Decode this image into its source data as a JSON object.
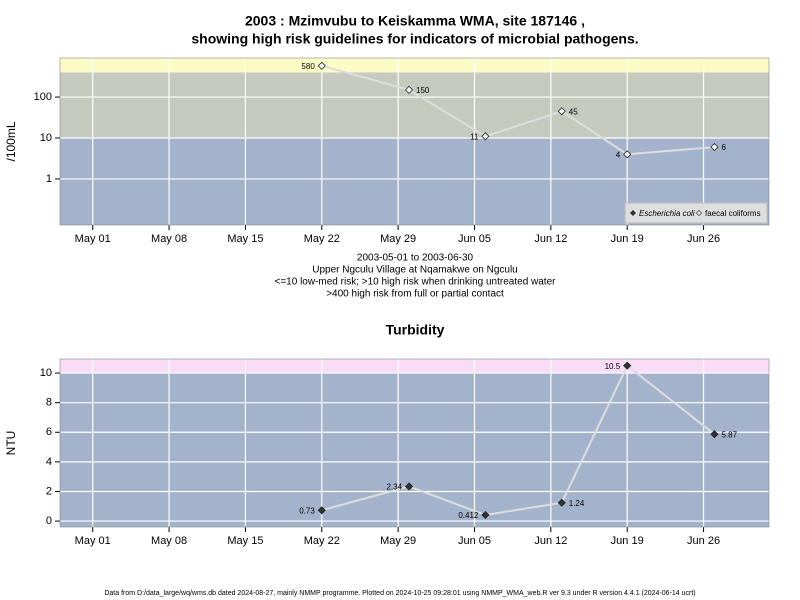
{
  "chart_data": [
    {
      "type": "line",
      "title": [
        "2003 : Mzimvubu to Keiskamma WMA, site 187146 ,",
        "showing high risk guidelines for indicators of microbial pathogens."
      ],
      "notes": [
        "2003-05-01 to 2003-06-30",
        "Upper Ngculu Village at Nqamakwe on Ngculu",
        "<=10 low-med risk; >10 high risk when drinking untreated water",
        ">400 high risk from full or partial contact"
      ],
      "ylabel": "/100mL",
      "log_scale": true,
      "grid": true,
      "legend": "lower right",
      "x": [
        "2003-05-22",
        "2003-05-30",
        "2003-06-06",
        "2003-06-13",
        "2003-06-19",
        "2003-06-27"
      ],
      "xlim": [
        "2003-04-28",
        "2003-07-02"
      ],
      "xticks": [
        {
          "value": "2003-05-01",
          "label": "May 01"
        },
        {
          "value": "2003-05-08",
          "label": "May 08"
        },
        {
          "value": "2003-05-15",
          "label": "May 15"
        },
        {
          "value": "2003-05-22",
          "label": "May 22"
        },
        {
          "value": "2003-05-29",
          "label": "May 29"
        },
        {
          "value": "2003-06-05",
          "label": "Jun 05"
        },
        {
          "value": "2003-06-12",
          "label": "Jun 12"
        },
        {
          "value": "2003-06-19",
          "label": "Jun 19"
        },
        {
          "value": "2003-06-26",
          "label": "Jun 26"
        }
      ],
      "ylim": [
        0.075,
        900
      ],
      "yticks": [
        1,
        10,
        100
      ],
      "bands": [
        {
          "range": [
            0.075,
            10
          ],
          "color": "#a3b3cc"
        },
        {
          "range": [
            10,
            400
          ],
          "color": "#c4cbbe"
        },
        {
          "range": [
            400,
            900
          ],
          "color": "#fbfbc6"
        }
      ],
      "series": [
        {
          "name": "Escherichia coli",
          "color": "#dddddd",
          "marker_fill": "#333333",
          "values": [
            null,
            null,
            null,
            null,
            null,
            null
          ]
        },
        {
          "name": "faecal coliforms",
          "color": "#dddddd",
          "marker_fill": "#ffffff",
          "values": [
            580,
            150,
            11,
            45,
            4,
            6
          ]
        }
      ]
    },
    {
      "type": "line",
      "title": [
        "Turbidity"
      ],
      "ylabel": "NTU",
      "log_scale": false,
      "grid": true,
      "x": [
        "2003-05-22",
        "2003-05-30",
        "2003-06-06",
        "2003-06-13",
        "2003-06-19",
        "2003-06-27"
      ],
      "xlim": [
        "2003-04-28",
        "2003-07-02"
      ],
      "xticks": [
        {
          "value": "2003-05-01",
          "label": "May 01"
        },
        {
          "value": "2003-05-08",
          "label": "May 08"
        },
        {
          "value": "2003-05-15",
          "label": "May 15"
        },
        {
          "value": "2003-05-22",
          "label": "May 22"
        },
        {
          "value": "2003-05-29",
          "label": "May 29"
        },
        {
          "value": "2003-06-05",
          "label": "Jun 05"
        },
        {
          "value": "2003-06-12",
          "label": "Jun 12"
        },
        {
          "value": "2003-06-19",
          "label": "Jun 19"
        },
        {
          "value": "2003-06-26",
          "label": "Jun 26"
        }
      ],
      "ylim": [
        -0.4,
        10.95
      ],
      "yticks": [
        0,
        2,
        4,
        6,
        8,
        10
      ],
      "bands": [
        {
          "range": [
            -0.4,
            10
          ],
          "color": "#a3b3cc"
        },
        {
          "range": [
            10,
            10.95
          ],
          "color": "#f9dcf5"
        }
      ],
      "color": "#dddddd",
      "marker_fill": "#333333",
      "values": [
        0.73,
        2.34,
        0.412,
        1.24,
        10.5,
        5.87
      ]
    }
  ],
  "footer": "Data from D:/data_large/wq/wms.db dated 2024-08-27, mainly NMMP programme. Plotted on 2024-10-25 09:28:01 using NMMP_WMA_web.R ver 9.3 under R version 4.4.1 (2024-06-14 ucrt)"
}
